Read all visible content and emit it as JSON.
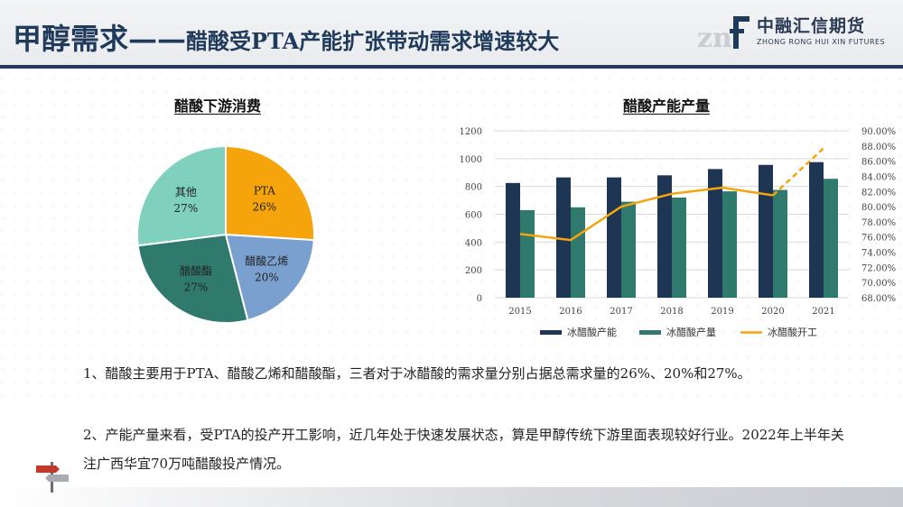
{
  "header": {
    "title_main": "甲醇需求——",
    "title_sub": "醋酸受PTA产能扩张带动需求增速较大",
    "brand_cn": "中融汇信期货",
    "brand_en": "ZHONG RONG HUI XIN FUTURES",
    "accent_color": "#1f3a5a"
  },
  "chart_data": [
    {
      "type": "pie",
      "title": "醋酸下游消费",
      "slices": [
        {
          "label": "PTA",
          "value": 26,
          "display": "26%",
          "color": "#f5a40c"
        },
        {
          "label": "醋酸乙烯",
          "value": 20,
          "display": "20%",
          "color": "#7aa0cf"
        },
        {
          "label": "醋酸酯",
          "value": 27,
          "display": "27%",
          "color": "#2f7a6d"
        },
        {
          "label": "其他",
          "value": 27,
          "display": "27%",
          "color": "#7fd0bd"
        }
      ]
    },
    {
      "type": "bar",
      "title": "醋酸产能产量",
      "categories": [
        "2015",
        "2016",
        "2017",
        "2018",
        "2019",
        "2020",
        "2021"
      ],
      "series": [
        {
          "name": "冰醋酸产能",
          "type": "bar",
          "axis": "left",
          "color": "#1f3554",
          "values": [
            825,
            865,
            865,
            880,
            925,
            955,
            975
          ]
        },
        {
          "name": "冰醋酸产量",
          "type": "bar",
          "axis": "left",
          "color": "#2f7a6d",
          "values": [
            630,
            650,
            690,
            720,
            765,
            775,
            855
          ]
        },
        {
          "name": "冰醋酸开工",
          "type": "line",
          "axis": "right",
          "color": "#f5a40c",
          "values": [
            76.4,
            75.6,
            80.0,
            81.7,
            82.5,
            81.5,
            87.7
          ],
          "dashed_from_index": 5
        }
      ],
      "ylim_left": [
        0,
        1200
      ],
      "yticks_left": [
        "0",
        "200",
        "400",
        "600",
        "800",
        "1000",
        "1200"
      ],
      "ylim_right": [
        68,
        90
      ],
      "yticks_right": [
        "68.00%",
        "70.00%",
        "72.00%",
        "74.00%",
        "76.00%",
        "78.00%",
        "80.00%",
        "82.00%",
        "84.00%",
        "86.00%",
        "88.00%",
        "90.00%"
      ],
      "legend_position": "bottom",
      "grid": true
    }
  ],
  "paragraphs": {
    "p1": "1、醋酸主要用于PTA、醋酸乙烯和醋酸酯，三者对于冰醋酸的需求量分别占据总需求量的26%、20%和27%。",
    "p2": "2、产能产量来看，受PTA的投产开工影响，近几年处于快速发展状态，算是甲醇传统下游里面表现较好行业。2022年上半年关注广西华宜70万吨醋酸投产情况。"
  }
}
